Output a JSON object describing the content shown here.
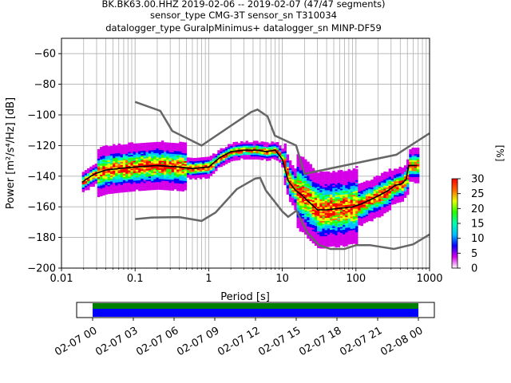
{
  "title_lines": [
    "BK.BK63.00.HHZ   2019-02-06 -- 2019-02-07  (47/47 segments)",
    "sensor_type CMG-3T sensor_sn T310034",
    "datalogger_type GuralpMinimus+ datalogger_sn MINP-DF59"
  ],
  "chart_data": {
    "type": "heatmap",
    "xlabel": "Period [s]",
    "ylabel": "Power [m²/s⁴/Hz] [dB]",
    "xscale": "log",
    "xlim": [
      0.01,
      1000
    ],
    "ylim": [
      -200,
      -50
    ],
    "x_ticks": [
      0.01,
      0.1,
      1,
      10,
      100,
      1000
    ],
    "x_tick_labels": [
      "0.01",
      "0.1",
      "1",
      "10",
      "100",
      "1000"
    ],
    "y_ticks": [
      -200,
      -180,
      -160,
      -140,
      -120,
      -100,
      -80,
      -60
    ],
    "y_tick_labels": [
      "−200",
      "−180",
      "−160",
      "−140",
      "−120",
      "−100",
      "−80",
      "−60"
    ],
    "grid": true,
    "noise_model_high": [
      [
        0.1,
        -91.5
      ],
      [
        0.22,
        -97.4
      ],
      [
        0.32,
        -110.5
      ],
      [
        0.8,
        -120
      ],
      [
        3.8,
        -98
      ],
      [
        4.6,
        -96.5
      ],
      [
        6.3,
        -101
      ],
      [
        7.9,
        -113.5
      ],
      [
        15.4,
        -120
      ],
      [
        20,
        -138.5
      ],
      [
        354,
        -126
      ],
      [
        1000,
        -112
      ]
    ],
    "noise_model_low": [
      [
        0.1,
        -168
      ],
      [
        0.17,
        -167
      ],
      [
        0.4,
        -166.7
      ],
      [
        0.8,
        -169.2
      ],
      [
        1.24,
        -163.7
      ],
      [
        2.4,
        -148.5
      ],
      [
        4.3,
        -141.5
      ],
      [
        5.0,
        -141.1
      ],
      [
        6.0,
        -149.4
      ],
      [
        10,
        -163
      ],
      [
        12,
        -166.5
      ],
      [
        15.6,
        -162.5
      ],
      [
        21.9,
        -177
      ],
      [
        31.6,
        -185
      ],
      [
        45,
        -187.5
      ],
      [
        70,
        -187.5
      ],
      [
        101,
        -185
      ],
      [
        154,
        -185
      ],
      [
        328,
        -187.5
      ],
      [
        600,
        -184.5
      ],
      [
        1000,
        -178
      ]
    ],
    "mode_line": [
      [
        0.019,
        -144
      ],
      [
        0.025,
        -140
      ],
      [
        0.03,
        -138
      ],
      [
        0.04,
        -136
      ],
      [
        0.06,
        -135
      ],
      [
        0.1,
        -134
      ],
      [
        0.2,
        -133
      ],
      [
        0.4,
        -134
      ],
      [
        0.6,
        -135
      ],
      [
        1.0,
        -134
      ],
      [
        1.4,
        -128
      ],
      [
        2.0,
        -124
      ],
      [
        3.0,
        -123
      ],
      [
        4.5,
        -123
      ],
      [
        6.0,
        -124
      ],
      [
        8.0,
        -123
      ],
      [
        10,
        -129
      ],
      [
        12,
        -143
      ],
      [
        15,
        -149
      ],
      [
        18,
        -152
      ],
      [
        22,
        -156
      ],
      [
        30,
        -162
      ],
      [
        40,
        -162
      ],
      [
        60,
        -161
      ],
      [
        90,
        -160
      ],
      [
        120,
        -158
      ],
      [
        180,
        -154
      ],
      [
        260,
        -150
      ],
      [
        300,
        -148
      ],
      [
        340,
        -146
      ],
      [
        420,
        -145
      ],
      [
        480,
        -142
      ],
      [
        520,
        -133
      ],
      [
        680,
        -133
      ]
    ],
    "colorbar": {
      "label": "[%]",
      "range": [
        0,
        30
      ],
      "ticks": [
        0,
        5,
        10,
        15,
        20,
        25,
        30
      ],
      "tick_labels": [
        "0",
        "5",
        "10",
        "15",
        "20",
        "25",
        "30"
      ],
      "colors": [
        "#ffffff",
        "#d600e8",
        "#0a00ff",
        "#00c0ff",
        "#00ffb0",
        "#25ff00",
        "#e5ff00",
        "#ff6600",
        "#ff0000"
      ]
    },
    "coverage": {
      "x_tick_labels": [
        "02-07 00",
        "02-07 03",
        "02-07 06",
        "02-07 09",
        "02-07 12",
        "02-07 15",
        "02-07 18",
        "02-07 21",
        "02-08 00"
      ],
      "bar_colors": [
        "#008000",
        "#0000ff"
      ]
    }
  }
}
